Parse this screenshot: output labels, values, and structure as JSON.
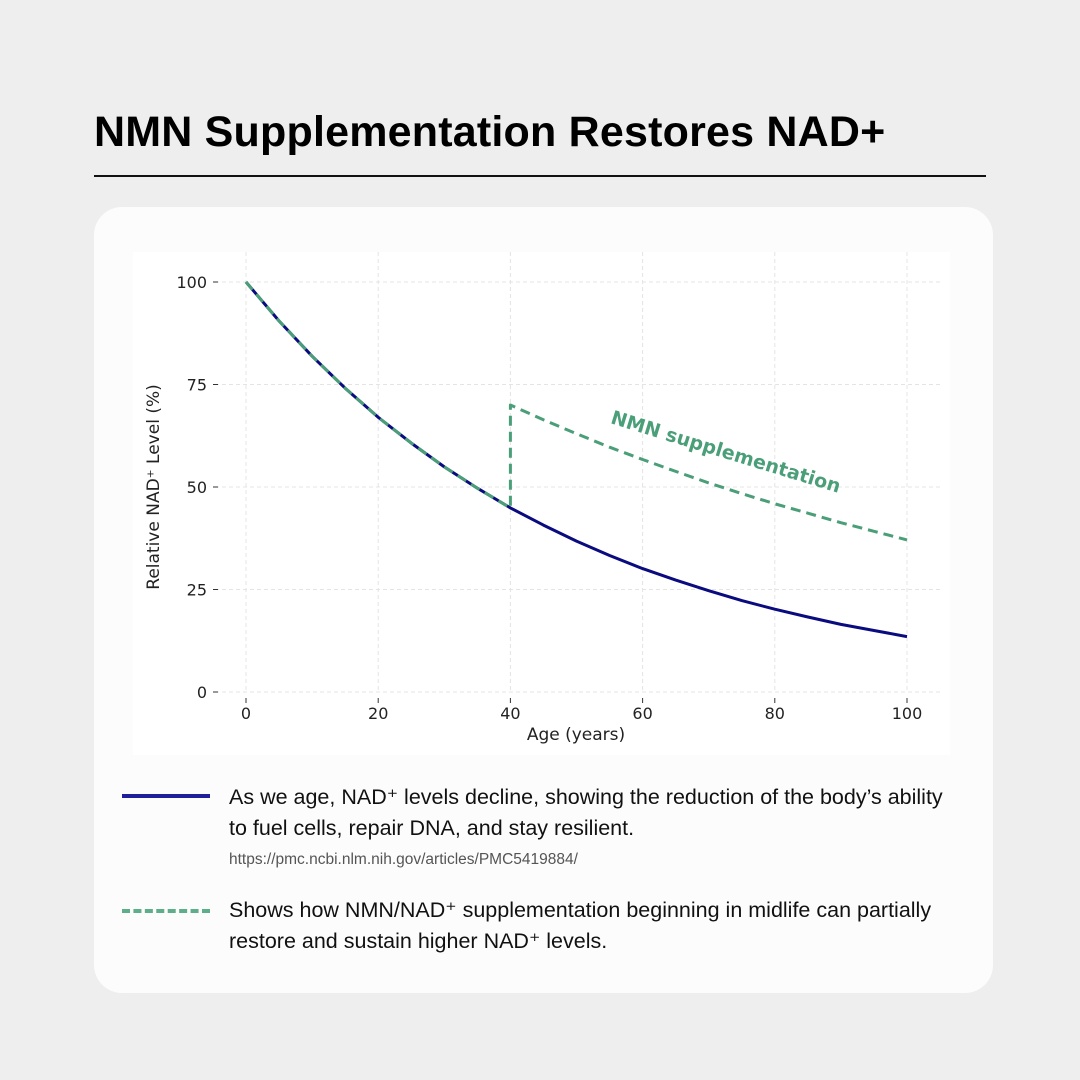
{
  "title": "NMN Supplementation Restores NAD+",
  "chart_data": {
    "type": "line",
    "xlabel": "Age (years)",
    "ylabel": "Relative NAD⁺ Level (%)",
    "xlim": [
      -5,
      105
    ],
    "ylim": [
      0,
      100
    ],
    "x_ticks": [
      "0",
      "20",
      "40",
      "60",
      "80",
      "100"
    ],
    "y_ticks": [
      "0",
      "25",
      "50",
      "75",
      "100"
    ],
    "grid": true,
    "series": [
      {
        "style": "solid",
        "color": "#0b0b80",
        "x": [
          0,
          5,
          10,
          15,
          20,
          25,
          30,
          35,
          40,
          45,
          50,
          55,
          60,
          65,
          70,
          75,
          80,
          85,
          90,
          95,
          100
        ],
        "y": [
          100,
          90.5,
          81.9,
          74.1,
          67.0,
          60.7,
          54.9,
          49.7,
          44.9,
          40.7,
          36.8,
          33.3,
          30.1,
          27.3,
          24.7,
          22.3,
          20.2,
          18.3,
          16.5,
          15.0,
          13.5
        ]
      },
      {
        "style": "dashed",
        "color": "#4a9e78",
        "x": [
          0,
          5,
          10,
          15,
          20,
          25,
          30,
          35,
          40,
          40,
          45,
          50,
          55,
          60,
          65,
          70,
          75,
          80,
          85,
          90,
          95,
          100
        ],
        "y": [
          100,
          90.5,
          81.9,
          74.1,
          67.0,
          60.7,
          54.9,
          49.7,
          44.9,
          70.0,
          66.4,
          63.0,
          59.7,
          56.7,
          53.8,
          51.0,
          48.4,
          45.9,
          43.6,
          41.3,
          39.2,
          37.1
        ]
      }
    ],
    "annotation": "NMN supplementation"
  },
  "legend": [
    {
      "text": "As we age, NAD⁺ levels decline, showing the reduction of the body’s ability to fuel cells, repair DNA, and stay resilient.",
      "source": "https://pmc.ncbi.nlm.nih.gov/articles/PMC5419884/",
      "color": "#1f1f9a"
    },
    {
      "text": "Shows how NMN/NAD⁺ supplementation beginning in midlife can partially restore and sustain higher NAD⁺ levels.",
      "color": "#5fae8a"
    }
  ]
}
